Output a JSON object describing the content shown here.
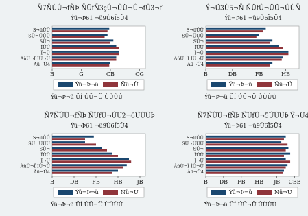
{
  "chart_data": [
    {
      "type": "bar",
      "orientation": "horizontal",
      "title": "Ñ7ÑÙÛ¬fÑÞ ÑÜfÑ3çÛ¬ÛÜ¬Û¬fÛ3¬f",
      "subtitle": "Ýü¬Þ61 ¬ü9Ù6Ï5Ü4",
      "categories": [
        "S¬üÛÛ",
        "SÜ¬ÜÙÜ",
        "SÜ¬",
        "ÏÛÛ",
        "Ï¬Ü",
        "ÀüÙ¬Ï ÍÙ¬Û",
        "Àü¬Ü4"
      ],
      "series": [
        {
          "name": "Ýü¬Þ¬ü",
          "color": "#1a476f",
          "values": [
            9.8,
            9.5,
            10.5,
            11,
            11.5,
            11,
            10
          ]
        },
        {
          "name": "Ñü¬Ü",
          "color": "#90353b",
          "values": [
            9.5,
            9,
            10,
            11.5,
            11.5,
            11,
            9.8
          ]
        }
      ],
      "xlim": [
        0,
        16
      ],
      "xticks": [
        {
          "value": 0,
          "label": "B"
        },
        {
          "value": 5,
          "label": "G"
        },
        {
          "value": 10,
          "label": "CB"
        },
        {
          "value": 15,
          "label": "CG"
        }
      ],
      "note": "Ýü¬Þ¬ü ÜÍ ÚÜ¬Ü ÙÙÙÙ"
    },
    {
      "type": "bar",
      "orientation": "horizontal",
      "title": "Ý¬Ü3Ù5¬Ñ ÑÜfÛ¬ÜÜ¬ÛÙÑ",
      "subtitle": "Ýü¬Þ61 ¬ü9Ù6Ï5Ü4",
      "categories": [
        "S¬üÛÛ",
        "SÜ¬ÜÙÜ",
        "SÜ¬",
        "ÏÛÛ",
        "Ï¬Ü",
        "ÀüÙ¬Ï ÍÙ¬Û",
        "Àü¬Ü4"
      ],
      "series": [
        {
          "name": "Ýü¬Þ¬ü",
          "color": "#1a476f",
          "values": [
            45,
            40,
            50,
            55,
            62,
            58,
            50
          ]
        },
        {
          "name": "Ñü¬Ü",
          "color": "#90353b",
          "values": [
            43,
            38,
            48,
            58,
            62,
            57,
            48
          ]
        }
      ],
      "xlim": [
        0,
        70
      ],
      "xticks": [
        {
          "value": 0,
          "label": "B"
        },
        {
          "value": 20,
          "label": "DB"
        },
        {
          "value": 40,
          "label": "FB"
        },
        {
          "value": 60,
          "label": "HB"
        }
      ],
      "note": "Ýü¬Þ¬ü ÜÍ ÚÜ¬Ü ÙÙÙÙ"
    },
    {
      "type": "bar",
      "orientation": "horizontal",
      "title": "Ñ7ÑÙÛ¬fÑÞ ÑÜfÛ¬ÛÙ2¬6ÜÛÜÞ",
      "subtitle": "Ýü¬Þ61 ¬ü9Ù6Ï5Ü4",
      "categories": [
        "S¬üÛÛ",
        "SÜ¬ÜÙÜ",
        "SÜ¬",
        "ÏÛÛ",
        "Ï¬Ü",
        "ÀüÙ¬Ï ÍÙ¬Û",
        "Àü¬Ü4"
      ],
      "series": [
        {
          "name": "Ýü¬Þ¬ü",
          "color": "#1a476f",
          "values": [
            38,
            30,
            45,
            55,
            70,
            68,
            60
          ]
        },
        {
          "name": "Ñü¬Ü",
          "color": "#90353b",
          "values": [
            30,
            40,
            50,
            60,
            72,
            65,
            55
          ]
        }
      ],
      "xlim": [
        0,
        85
      ],
      "xticks": [
        {
          "value": 0,
          "label": "B"
        },
        {
          "value": 20,
          "label": "DB"
        },
        {
          "value": 40,
          "label": "FB"
        },
        {
          "value": 60,
          "label": "HB"
        },
        {
          "value": 80,
          "label": "JB"
        }
      ],
      "note": "Ýü¬Þ¬ü ÜÍ ÚÜ¬Ü ÙÙÙÙ"
    },
    {
      "type": "bar",
      "orientation": "horizontal",
      "title": "Ñ7ÑÙÛ¬fÑÞ ÑÜfÛ¬5ÛÙÜÞ Ý¬Ü4",
      "subtitle": "Ýü¬Þ61 ¬ü9Ù6Ï5Ü4",
      "categories": [
        "S¬üÛÛ",
        "SÜ¬ÜÙÜ",
        "SÜ¬",
        "ÏÛÛ",
        "Ï¬Ü",
        "ÀüÙ¬Ï ÍÙ¬Û",
        "Àü¬Ü4"
      ],
      "series": [
        {
          "name": "Ýü¬Þ¬ü",
          "color": "#1a476f",
          "values": [
            90,
            85,
            93,
            95,
            90,
            92,
            88
          ]
        },
        {
          "name": "Ñü¬Ü",
          "color": "#90353b",
          "values": [
            88,
            92,
            90,
            88,
            95,
            90,
            87
          ]
        }
      ],
      "xlim": [
        0,
        105
      ],
      "xticks": [
        {
          "value": 0,
          "label": "B"
        },
        {
          "value": 20,
          "label": "DB"
        },
        {
          "value": 40,
          "label": "FB"
        },
        {
          "value": 60,
          "label": "HB"
        },
        {
          "value": 80,
          "label": "JB"
        },
        {
          "value": 100,
          "label": "CBB"
        }
      ],
      "note": "Ýü¬Þ¬ü ÜÍ ÚÜ¬Ü ÙÙÙÙ"
    }
  ]
}
